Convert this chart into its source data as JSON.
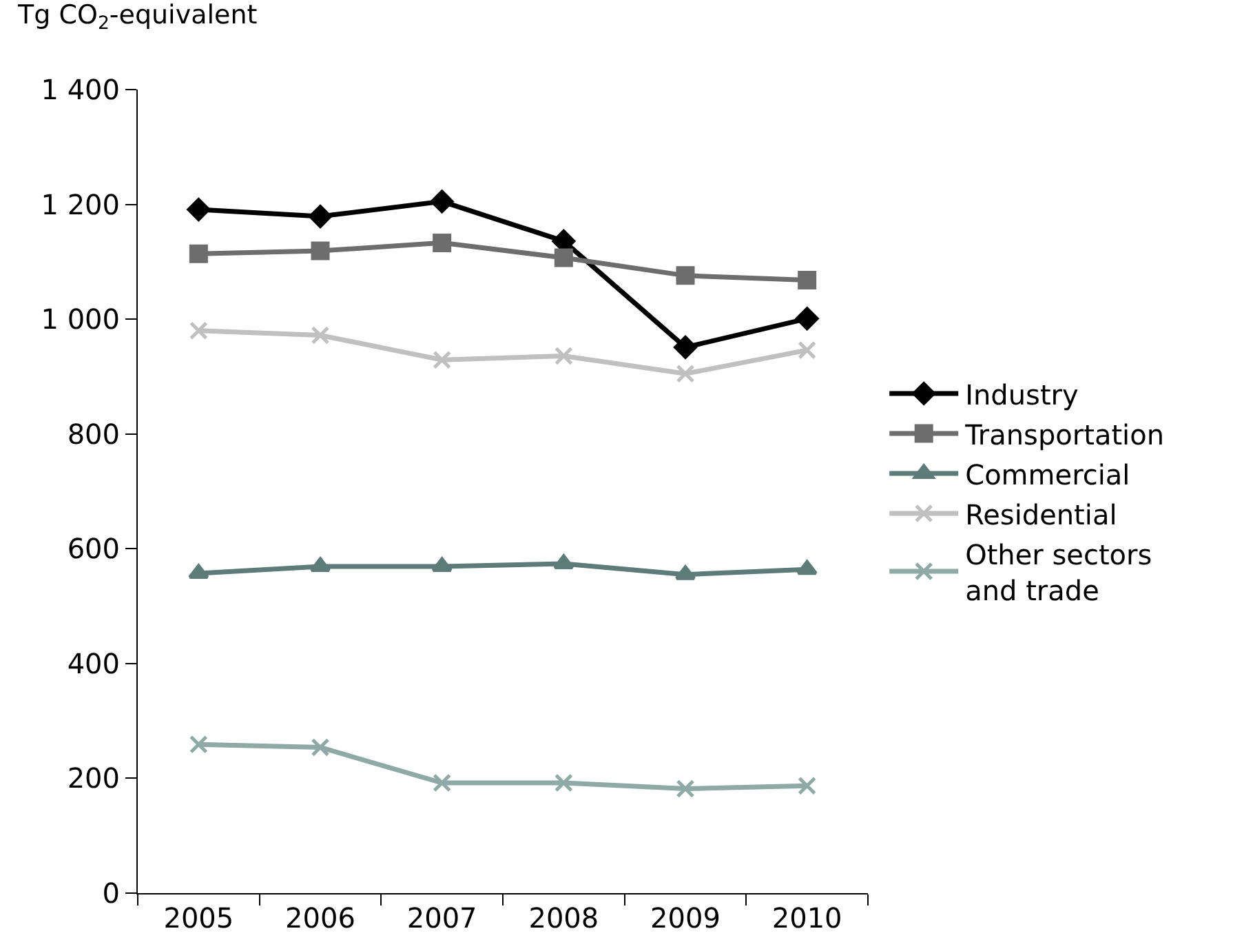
{
  "chart_data": {
    "type": "line",
    "ylabel": "Tg CO$_{2}$-equivalent",
    "categories": [
      "2005",
      "2006",
      "2007",
      "2008",
      "2009",
      "2010"
    ],
    "series": [
      {
        "name": "Industry",
        "color": "#000000",
        "marker": "diamond",
        "values": [
          1191,
          1179,
          1205,
          1136,
          951,
          1001
        ]
      },
      {
        "name": "Transportation",
        "color": "#6d6d6d",
        "marker": "square",
        "values": [
          1114,
          1119,
          1133,
          1107,
          1076,
          1068
        ]
      },
      {
        "name": "Commercial",
        "color": "#5c7b79",
        "marker": "triangle",
        "values": [
          557,
          569,
          569,
          574,
          555,
          564
        ]
      },
      {
        "name": "Residential",
        "color": "#c0c0c0",
        "marker": "cross",
        "values": [
          980,
          972,
          929,
          936,
          905,
          946
        ]
      },
      {
        "name": "Other sectors and trade",
        "color": "#8fa9a6",
        "marker": "cross",
        "values": [
          259,
          254,
          192,
          192,
          182,
          187
        ]
      }
    ],
    "ylim": [
      0,
      1400
    ],
    "yticks": [
      0,
      200,
      400,
      600,
      800,
      {
        "value": 1000,
        "label": "1 000"
      },
      {
        "value": 1200,
        "label": "1 200"
      },
      {
        "value": 1400,
        "label": "1 400"
      }
    ],
    "legend": "right",
    "line_style": "solid"
  }
}
